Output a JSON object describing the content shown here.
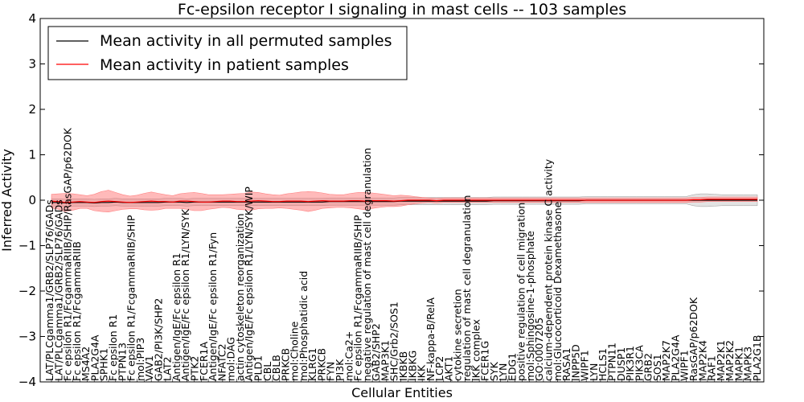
{
  "chart_data": {
    "type": "line",
    "title": "Fc-epsilon receptor I signaling in mast cells -- 103 samples",
    "xlabel": "Cellular Entities",
    "ylabel": "Inferred Activity",
    "ylim": [
      -4,
      4
    ],
    "yticks": [
      -4,
      -3,
      -2,
      -1,
      0,
      1,
      2,
      3,
      4
    ],
    "ytick_labels": [
      "−4",
      "−3",
      "−2",
      "−1",
      "0",
      "1",
      "2",
      "3",
      "4"
    ],
    "grid": false,
    "legend_position": "top-left",
    "x_count": 100,
    "labeled_entities": [
      {
        "i": 0,
        "label": "LAT/PLCgamma1/GRB2/SLP76/GADs",
        "tall": false
      },
      {
        "i": 1,
        "label": "LAT/PLCgamma1/GRB2/SLP76/GADs",
        "tall": false
      },
      {
        "i": 2,
        "label": "Fc epsilon R1/FcgammaRIIB/SHIP/RasGAP/p62DOK",
        "tall": true
      },
      {
        "i": 3,
        "label": "Fc epsilon R1/FcgammaRIIB",
        "tall": false
      },
      {
        "i": 4,
        "label": "MS4A2",
        "tall": false
      },
      {
        "i": 5,
        "label": "PLA2G4A",
        "tall": false
      },
      {
        "i": 6,
        "label": "SPHK1",
        "tall": false
      },
      {
        "i": 7,
        "label": "Fc epsilon R1",
        "tall": false
      },
      {
        "i": 8,
        "label": "PTPN13",
        "tall": false
      },
      {
        "i": 9,
        "label": "Fc epsilon R1/FcgammaRIIB/SHIP",
        "tall": false
      },
      {
        "i": 10,
        "label": "mol:PIP3",
        "tall": false
      },
      {
        "i": 11,
        "label": "VAV1",
        "tall": false
      },
      {
        "i": 12,
        "label": "GAB2/PI3K/SHP2",
        "tall": false
      },
      {
        "i": 13,
        "label": "LAT2",
        "tall": false
      },
      {
        "i": 14,
        "label": "Antigen/IgE/Fc epsilon R1",
        "tall": false
      },
      {
        "i": 15,
        "label": "Antigen/IgE/Fc epsilon R1/LYN/SYK",
        "tall": false
      },
      {
        "i": 16,
        "label": "PTK2",
        "tall": false
      },
      {
        "i": 17,
        "label": "FCER1A",
        "tall": false
      },
      {
        "i": 18,
        "label": "Antigen/IgE/Fc epsilon R1/Fyn",
        "tall": false
      },
      {
        "i": 19,
        "label": "NFATC2",
        "tall": false
      },
      {
        "i": 20,
        "label": "mol:DAG",
        "tall": false
      },
      {
        "i": 21,
        "label": "actin cytoskeleton reorganization",
        "tall": false
      },
      {
        "i": 22,
        "label": "Antigen/IgE/Fc epsilon R1/LYN/SYK/WIP",
        "tall": false
      },
      {
        "i": 23,
        "label": "PLD1",
        "tall": false
      },
      {
        "i": 24,
        "label": "CBL",
        "tall": false
      },
      {
        "i": 25,
        "label": "CBLB",
        "tall": false
      },
      {
        "i": 26,
        "label": "PRKCB",
        "tall": false
      },
      {
        "i": 27,
        "label": "mol:Choline",
        "tall": false
      },
      {
        "i": 28,
        "label": "mol:Phosphatidic acid",
        "tall": false
      },
      {
        "i": 29,
        "label": "KLRG1",
        "tall": false
      },
      {
        "i": 30,
        "label": "PRKCB",
        "tall": false
      },
      {
        "i": 31,
        "label": "FYN",
        "tall": false
      },
      {
        "i": 32,
        "label": "PI3K",
        "tall": false
      },
      {
        "i": 33,
        "label": "mol:Ca2+",
        "tall": false
      },
      {
        "i": 34,
        "label": "Fc epsilon R1/FcgammaRIIB/SHIP",
        "tall": false
      },
      {
        "i": 35,
        "label": "negative regulation of mast cell degranulation",
        "tall": true
      },
      {
        "i": 36,
        "label": "GAB2/SHP2",
        "tall": false
      },
      {
        "i": 37,
        "label": "MAP3K1",
        "tall": false
      },
      {
        "i": 38,
        "label": "SHC/Grb2/SOS1",
        "tall": false
      },
      {
        "i": 39,
        "label": "IKBKB",
        "tall": false
      },
      {
        "i": 40,
        "label": "IKBKG",
        "tall": false
      },
      {
        "i": 41,
        "label": "IKK",
        "tall": false
      },
      {
        "i": 42,
        "label": "NF-kappa-B/RelA",
        "tall": false
      },
      {
        "i": 43,
        "label": "LCP2",
        "tall": false
      },
      {
        "i": 44,
        "label": "AKT1",
        "tall": false
      },
      {
        "i": 45,
        "label": "cytokine secretion",
        "tall": false
      },
      {
        "i": 46,
        "label": "regulation of mast cell degranulation",
        "tall": false
      },
      {
        "i": 47,
        "label": "IKK complex",
        "tall": false
      },
      {
        "i": 48,
        "label": "FCER1G",
        "tall": false
      },
      {
        "i": 49,
        "label": "SYK",
        "tall": false
      },
      {
        "i": 50,
        "label": "LYN",
        "tall": false
      },
      {
        "i": 51,
        "label": "EDG1",
        "tall": false
      },
      {
        "i": 52,
        "label": "positive regulation of cell migration",
        "tall": false
      },
      {
        "i": 53,
        "label": "mol:Sphingosine-1-phosphate",
        "tall": false
      },
      {
        "i": 54,
        "label": "GO:0007205",
        "tall": false
      },
      {
        "i": 55,
        "label": "calcium-dependent protein kinase C activity",
        "tall": false
      },
      {
        "i": 56,
        "label": "mol:Glucocorticoid Dexamethasone",
        "tall": false
      },
      {
        "i": 57,
        "label": "RASA1",
        "tall": false
      },
      {
        "i": 58,
        "label": "INPP5D",
        "tall": false
      },
      {
        "i": 59,
        "label": "WIPF1",
        "tall": false
      },
      {
        "i": 60,
        "label": "LYN",
        "tall": false
      },
      {
        "i": 61,
        "label": "HCLS1",
        "tall": false
      },
      {
        "i": 62,
        "label": "PTPN11",
        "tall": false
      },
      {
        "i": 63,
        "label": "DUSP1",
        "tall": false
      },
      {
        "i": 64,
        "label": "PIK3R1",
        "tall": false
      },
      {
        "i": 65,
        "label": "PIK3CA",
        "tall": false
      },
      {
        "i": 66,
        "label": "GRB2",
        "tall": false
      },
      {
        "i": 67,
        "label": "SOS1",
        "tall": false
      },
      {
        "i": 68,
        "label": "MAP2K7",
        "tall": false
      },
      {
        "i": 69,
        "label": "PLA2G4A",
        "tall": false
      },
      {
        "i": 70,
        "label": "WIPF1",
        "tall": false
      },
      {
        "i": 71,
        "label": "RasGAP/p62DOK",
        "tall": false
      },
      {
        "i": 72,
        "label": "MAP2K4",
        "tall": false
      },
      {
        "i": 73,
        "label": "RAF1",
        "tall": false
      },
      {
        "i": 74,
        "label": "MAP2K1",
        "tall": false
      },
      {
        "i": 75,
        "label": "MAP2K2",
        "tall": false
      },
      {
        "i": 76,
        "label": "MAPK1",
        "tall": false
      },
      {
        "i": 77,
        "label": "MAPK3",
        "tall": false
      },
      {
        "i": 78,
        "label": "PLA2G1B",
        "tall": false
      }
    ],
    "series": [
      {
        "name": "Mean activity in all permuted samples",
        "color": "#000000",
        "values": [
          -0.05,
          -0.05,
          -0.06,
          -0.05,
          -0.05,
          -0.05,
          -0.06,
          -0.05,
          -0.05,
          -0.04,
          -0.05,
          -0.05,
          -0.05,
          -0.05,
          -0.05,
          -0.05,
          -0.04,
          -0.04,
          -0.04,
          -0.05,
          -0.04,
          -0.04,
          -0.04,
          -0.04,
          -0.04,
          -0.04,
          -0.04,
          -0.04,
          -0.04,
          -0.04,
          -0.04,
          -0.04,
          -0.04,
          -0.04,
          -0.04,
          -0.04,
          -0.04,
          -0.04,
          -0.04,
          -0.03,
          -0.03,
          -0.03,
          -0.03,
          -0.03,
          -0.03,
          -0.03,
          -0.03,
          -0.03,
          -0.03,
          -0.02,
          -0.02,
          -0.02,
          -0.02,
          -0.02,
          -0.02,
          -0.02,
          -0.02,
          -0.02,
          -0.02,
          -0.02,
          -0.02,
          -0.02,
          -0.01,
          -0.01,
          -0.01,
          -0.01,
          -0.01,
          -0.01,
          -0.01,
          -0.01,
          -0.01,
          -0.01,
          -0.01,
          -0.01,
          -0.01,
          0.0,
          0.0,
          0.0,
          0.0,
          0.0,
          0.0,
          0.0,
          0.0,
          0.0,
          0.0,
          0.0,
          0.0,
          0.0,
          0.0,
          0.0,
          0.0,
          0.0,
          0.0,
          0.0,
          0.0,
          0.0,
          0.0,
          0.0,
          0.0,
          0.0
        ]
      },
      {
        "name": "Mean activity in patient samples",
        "color": "#ff0000",
        "values": [
          -0.02,
          -0.03,
          -0.05,
          -0.04,
          -0.03,
          -0.04,
          -0.05,
          -0.03,
          -0.02,
          -0.03,
          -0.04,
          -0.05,
          -0.04,
          -0.03,
          -0.02,
          -0.03,
          -0.03,
          -0.04,
          -0.02,
          -0.02,
          -0.03,
          -0.04,
          -0.04,
          -0.03,
          -0.02,
          -0.02,
          -0.03,
          -0.03,
          -0.02,
          -0.01,
          -0.02,
          -0.03,
          -0.03,
          -0.02,
          -0.02,
          -0.02,
          -0.03,
          -0.02,
          -0.01,
          -0.02,
          -0.02,
          -0.02,
          -0.01,
          -0.01,
          -0.02,
          -0.01,
          -0.01,
          -0.01,
          -0.02,
          -0.01,
          0.0,
          0.0,
          0.0,
          0.0,
          -0.01,
          0.0,
          0.0,
          0.0,
          0.0,
          0.0,
          0.0,
          0.0,
          0.0,
          0.0,
          0.0,
          0.0,
          0.0,
          0.0,
          0.0,
          0.0,
          0.0,
          0.0,
          0.0,
          0.0,
          0.0,
          0.0,
          0.0,
          0.0,
          0.0,
          0.0,
          0.0,
          0.0,
          0.0,
          0.0,
          0.0,
          0.0,
          0.0,
          0.0,
          0.0,
          0.0,
          0.01,
          0.01,
          0.02,
          0.02,
          0.02,
          0.02,
          0.02,
          0.02,
          0.02,
          0.02
        ]
      }
    ],
    "patient_band_halfwidth": [
      0.15,
      0.17,
      0.2,
      0.18,
      0.15,
      0.14,
      0.18,
      0.22,
      0.24,
      0.2,
      0.16,
      0.14,
      0.15,
      0.18,
      0.2,
      0.18,
      0.15,
      0.14,
      0.16,
      0.18,
      0.2,
      0.19,
      0.16,
      0.15,
      0.14,
      0.15,
      0.17,
      0.18,
      0.2,
      0.18,
      0.16,
      0.15,
      0.14,
      0.16,
      0.18,
      0.2,
      0.22,
      0.2,
      0.17,
      0.15,
      0.14,
      0.14,
      0.16,
      0.18,
      0.19,
      0.17,
      0.15,
      0.13,
      0.12,
      0.12,
      0.1,
      0.08,
      0.06,
      0.05,
      0.05,
      0.05,
      0.05,
      0.05,
      0.05,
      0.05,
      0.05,
      0.05,
      0.05,
      0.05,
      0.05,
      0.05,
      0.05,
      0.05,
      0.05,
      0.05,
      0.05,
      0.05,
      0.05,
      0.05,
      0.05,
      0.05,
      0.05,
      0.05,
      0.05,
      0.05,
      0.05,
      0.05,
      0.05,
      0.05,
      0.05,
      0.05,
      0.05,
      0.05,
      0.05,
      0.05,
      0.05,
      0.05,
      0.05,
      0.05,
      0.05,
      0.05,
      0.05,
      0.05,
      0.05,
      0.05
    ],
    "permuted_band_halfwidth": [
      0.08,
      0.08,
      0.08,
      0.08,
      0.08,
      0.08,
      0.08,
      0.08,
      0.08,
      0.08,
      0.08,
      0.08,
      0.08,
      0.08,
      0.08,
      0.08,
      0.08,
      0.08,
      0.08,
      0.08,
      0.08,
      0.08,
      0.08,
      0.08,
      0.08,
      0.08,
      0.08,
      0.08,
      0.08,
      0.08,
      0.08,
      0.08,
      0.08,
      0.08,
      0.08,
      0.08,
      0.08,
      0.08,
      0.08,
      0.08,
      0.08,
      0.08,
      0.08,
      0.08,
      0.08,
      0.08,
      0.08,
      0.08,
      0.08,
      0.08,
      0.08,
      0.08,
      0.08,
      0.08,
      0.08,
      0.08,
      0.08,
      0.08,
      0.08,
      0.08,
      0.08,
      0.08,
      0.08,
      0.08,
      0.08,
      0.08,
      0.08,
      0.08,
      0.08,
      0.08,
      0.08,
      0.08,
      0.08,
      0.08,
      0.08,
      0.08,
      0.08,
      0.08,
      0.08,
      0.08,
      0.08,
      0.08,
      0.08,
      0.08,
      0.08,
      0.08,
      0.08,
      0.08,
      0.08,
      0.08,
      0.12,
      0.14,
      0.14,
      0.13,
      0.12,
      0.12,
      0.12,
      0.12,
      0.12,
      0.12
    ]
  }
}
